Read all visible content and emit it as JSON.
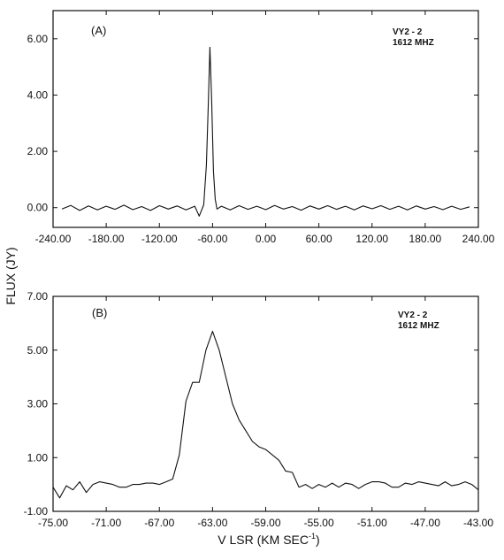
{
  "ylabel": "FLUX (JY)",
  "xlabel_main": "V LSR (KM SEC",
  "xlabel_sup": "-1",
  "xlabel_close": ")",
  "chart_data": [
    {
      "type": "line",
      "panel_label": "(A)",
      "annotation": [
        "VY2 - 2",
        "1612 MHZ"
      ],
      "xlim": [
        -240,
        240
      ],
      "ylim": [
        -0.7,
        7.0
      ],
      "xticks": [
        -240,
        -180,
        -120,
        -60,
        0,
        60,
        120,
        180,
        240
      ],
      "xtick_labels": [
        "-240.00",
        "-180.00",
        "-120.00",
        "-60.00",
        "0.00",
        "60.00",
        "120.00",
        "180.00",
        "240.00"
      ],
      "yticks": [
        0,
        2,
        4,
        6
      ],
      "ytick_labels": [
        "0.00",
        "2.00",
        "4.00",
        "6.00"
      ],
      "series": [
        {
          "x": [
            -230,
            -220,
            -210,
            -200,
            -190,
            -180,
            -170,
            -160,
            -150,
            -140,
            -130,
            -120,
            -110,
            -100,
            -90,
            -80,
            -75,
            -70,
            -67,
            -65,
            -63,
            -61,
            -59,
            -57,
            -55,
            -50,
            -40,
            -30,
            -20,
            -10,
            0,
            10,
            20,
            30,
            40,
            50,
            60,
            70,
            80,
            90,
            100,
            110,
            120,
            130,
            140,
            150,
            160,
            170,
            180,
            190,
            200,
            210,
            220,
            230
          ],
          "y": [
            -0.05,
            0.08,
            -0.1,
            0.06,
            -0.08,
            0.05,
            -0.06,
            0.09,
            -0.07,
            0.04,
            -0.1,
            0.07,
            -0.05,
            0.06,
            -0.08,
            0.05,
            -0.3,
            0.1,
            1.5,
            3.5,
            5.7,
            3.8,
            1.3,
            0.3,
            -0.05,
            0.05,
            -0.08,
            0.07,
            -0.06,
            0.05,
            -0.07,
            0.08,
            -0.05,
            0.04,
            -0.09,
            0.06,
            -0.05,
            0.07,
            -0.06,
            0.05,
            -0.08,
            0.06,
            -0.04,
            0.07,
            -0.06,
            0.05,
            -0.08,
            0.06,
            -0.05,
            0.04,
            -0.07,
            0.05,
            -0.06,
            0.03
          ]
        }
      ]
    },
    {
      "type": "line",
      "panel_label": "(B)",
      "annotation": [
        "VY2 - 2",
        "1612 MHZ"
      ],
      "xlim": [
        -75,
        -43
      ],
      "ylim": [
        -1.0,
        7.0
      ],
      "xticks": [
        -75,
        -71,
        -67,
        -63,
        -59,
        -55,
        -51,
        -47,
        -43
      ],
      "xtick_labels": [
        "-75.00",
        "-71.00",
        "-67.00",
        "-63.00",
        "-59.00",
        "-55.00",
        "-51.00",
        "-47.00",
        "-43.00"
      ],
      "yticks": [
        -1,
        1,
        3,
        5,
        7
      ],
      "ytick_labels": [
        "-1.00",
        "1.00",
        "3.00",
        "5.00",
        "7.00"
      ],
      "series": [
        {
          "x": [
            -75,
            -74.5,
            -74,
            -73.5,
            -73,
            -72.5,
            -72,
            -71.5,
            -71,
            -70.5,
            -70,
            -69.5,
            -69,
            -68.5,
            -68,
            -67.5,
            -67,
            -66.5,
            -66,
            -65.5,
            -65,
            -64.5,
            -64,
            -63.5,
            -63,
            -62.5,
            -62,
            -61.5,
            -61,
            -60.5,
            -60,
            -59.5,
            -59,
            -58.5,
            -58,
            -57.5,
            -57,
            -56.5,
            -56,
            -55.5,
            -55,
            -54.5,
            -54,
            -53.5,
            -53,
            -52.5,
            -52,
            -51.5,
            -51,
            -50.5,
            -50,
            -49.5,
            -49,
            -48.5,
            -48,
            -47.5,
            -47,
            -46.5,
            -46,
            -45.5,
            -45,
            -44.5,
            -44,
            -43.5,
            -43
          ],
          "y": [
            -0.1,
            -0.5,
            -0.05,
            -0.2,
            0.1,
            -0.3,
            0.0,
            0.1,
            0.05,
            0.0,
            -0.1,
            -0.1,
            0.0,
            0.0,
            0.05,
            0.05,
            0.0,
            0.1,
            0.2,
            1.1,
            3.1,
            3.8,
            3.8,
            5.0,
            5.7,
            5.0,
            4.0,
            3.0,
            2.4,
            2.0,
            1.6,
            1.4,
            1.3,
            1.1,
            0.9,
            0.5,
            0.45,
            -0.1,
            0.0,
            -0.15,
            0.0,
            -0.1,
            0.05,
            -0.1,
            0.05,
            0.0,
            -0.15,
            0.0,
            0.1,
            0.1,
            0.05,
            -0.1,
            -0.1,
            0.05,
            0.0,
            0.1,
            0.05,
            0.0,
            -0.05,
            0.1,
            -0.05,
            0.0,
            0.1,
            0.0,
            -0.2
          ]
        }
      ]
    }
  ]
}
